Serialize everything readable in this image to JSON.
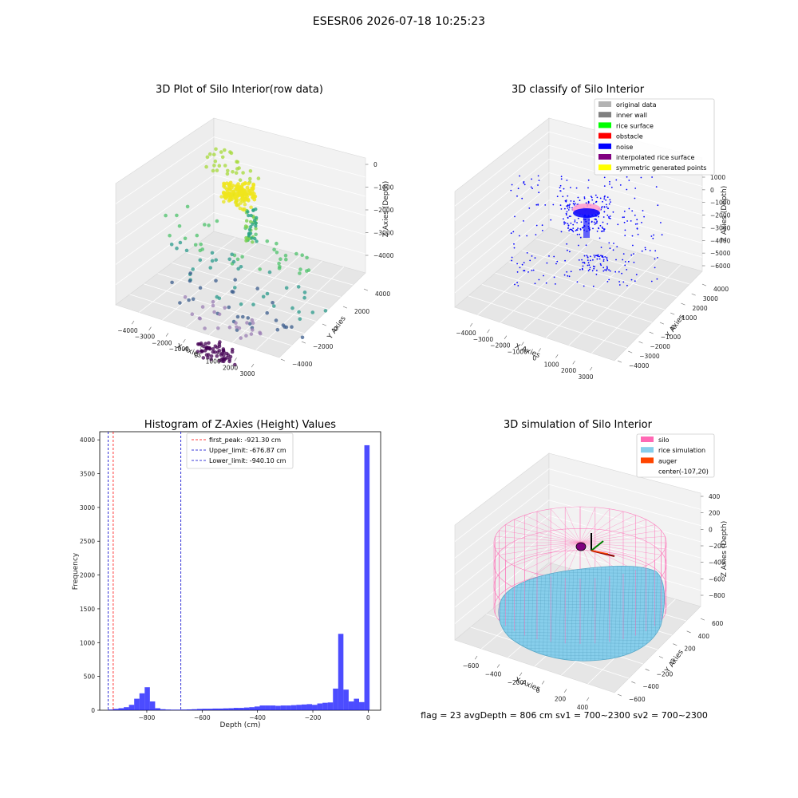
{
  "suptitle": "ESESR06 2026-07-18 10:25:23",
  "status_line": "flag = 23   avgDepth = 806 cm  sv1 = 700~2300  sv2 = 700~2300",
  "chart_data": [
    {
      "type": "scatter",
      "projection": "3d",
      "title": "3D Plot of Silo Interior(row data)",
      "xlabel": "X Axies",
      "ylabel": "Y Axies",
      "zlabel": "Z Axies (Depth)",
      "x_ticks": [
        "−4000",
        "−3000",
        "−2000",
        "−1000",
        "0",
        "1000",
        "2000",
        "3000"
      ],
      "y_ticks": [
        "−4000",
        "−2000",
        "0",
        "2000",
        "4000"
      ],
      "z_ticks": [
        "0",
        "−1000",
        "−2000",
        "−3000",
        "−4000"
      ],
      "xlim": [
        -4500,
        3500
      ],
      "ylim": [
        -4500,
        4500
      ],
      "zlim": [
        -4600,
        200
      ],
      "colormap": "viridis",
      "point_groups": [
        {
          "name": "",
          "color": "#e7e41a",
          "cx": -500,
          "cy": 800,
          "z": -900,
          "count": 60,
          "radius": 700
        },
        {
          "name": "",
          "color": "#a6d93a",
          "cx": -1500,
          "cy": 2500,
          "z": -600,
          "count": 30,
          "radius": 1500
        },
        {
          "name": "",
          "color": "#4cc16a",
          "cx": 0,
          "cy": 0,
          "z": -1800,
          "count": 40,
          "radius": 3600
        },
        {
          "name": "",
          "color": "#2a9a8b",
          "cx": 0,
          "cy": 0,
          "z": -2700,
          "count": 35,
          "radius": 3800
        },
        {
          "name": "",
          "color": "#3b5c8c",
          "cx": 0,
          "cy": 0,
          "z": -3400,
          "count": 30,
          "radius": 3300
        },
        {
          "name": "",
          "color": "#9b7fb4",
          "cx": -500,
          "cy": -500,
          "z": -3800,
          "count": 25,
          "radius": 1800
        },
        {
          "name": "",
          "color": "#440154",
          "cx": -300,
          "cy": -1800,
          "z": -4300,
          "count": 60,
          "radius": 900
        }
      ]
    },
    {
      "type": "scatter",
      "projection": "3d",
      "title": "3D classify of Silo Interior",
      "xlabel": "X Axies",
      "ylabel": "Y Axies",
      "zlabel": "Z Axies (Depth)",
      "x_ticks": [
        "−4000",
        "−3000",
        "−2000",
        "−1000",
        "0",
        "1000",
        "2000",
        "3000"
      ],
      "y_ticks": [
        "−4000",
        "−3000",
        "−2000",
        "−1000",
        "0",
        "1000",
        "2000",
        "3000",
        "4000"
      ],
      "z_ticks": [
        "1000",
        "0",
        "−1000",
        "−2000",
        "−3000",
        "−4000",
        "−5000",
        "−6000"
      ],
      "legend": [
        {
          "label": "original data",
          "color": "#b3b3b3"
        },
        {
          "label": "inner wall",
          "color": "#808080"
        },
        {
          "label": "rice surface",
          "color": "#00ff00"
        },
        {
          "label": "obstacle",
          "color": "#ff0000"
        },
        {
          "label": "noise",
          "color": "#0000ff"
        },
        {
          "label": "interpolated rice surface",
          "color": "#800080"
        },
        {
          "label": "symmetric generated points",
          "color": "#ffff00"
        }
      ],
      "legend_loc": "upper right",
      "noise_points": 420,
      "center_cluster": {
        "x": 0,
        "y": 0,
        "z": -2400,
        "color_outer": "#ff9ecf",
        "color_inner": "#0000ff"
      }
    },
    {
      "type": "bar",
      "title": "Histogram of Z-Axies (Height) Values",
      "xlabel": "Depth (cm)",
      "ylabel": "Frequency",
      "xlim": [
        -970,
        45
      ],
      "ylim": [
        0,
        4120
      ],
      "x_ticks": [
        -800,
        -600,
        -400,
        -200,
        0
      ],
      "y_ticks": [
        0,
        500,
        1000,
        1500,
        2000,
        2500,
        3000,
        3500,
        4000
      ],
      "bin_width": 18.9,
      "bin_starts": [
        -940,
        -921.1,
        -902.2,
        -883.3,
        -864.4,
        -845.5,
        -826.6,
        -807.7,
        -788.8,
        -769.9,
        -751,
        -732.1,
        -713.2,
        -694.3,
        -675.4,
        -656.5,
        -637.6,
        -618.7,
        -599.8,
        -580.9,
        -562,
        -543.1,
        -524.2,
        -505.3,
        -486.4,
        -467.5,
        -448.6,
        -429.7,
        -410.8,
        -391.9,
        -373,
        -354.1,
        -335.2,
        -316.3,
        -297.4,
        -278.5,
        -259.6,
        -240.7,
        -221.8,
        -202.9,
        -184,
        -165.1,
        -146.2,
        -127.3,
        -108.4,
        -89.5,
        -70.6,
        -51.7,
        -32.8,
        -13.9
      ],
      "values": [
        10,
        20,
        30,
        45,
        80,
        170,
        250,
        340,
        130,
        30,
        15,
        10,
        8,
        8,
        10,
        12,
        15,
        20,
        22,
        22,
        25,
        25,
        28,
        30,
        35,
        35,
        40,
        45,
        55,
        70,
        70,
        70,
        65,
        70,
        70,
        75,
        80,
        85,
        90,
        80,
        100,
        110,
        115,
        320,
        1130,
        305,
        130,
        170,
        120,
        3920
      ],
      "color": "#0000ff",
      "opacity": 0.7,
      "vlines": [
        {
          "label": "first_peak: -921.30 cm",
          "x": -921.3,
          "color": "#ff0000"
        },
        {
          "label": "Upper_limit: -676.87 cm",
          "x": -676.87,
          "color": "#0000cc"
        },
        {
          "label": "Lower_limit: -940.10 cm",
          "x": -940.1,
          "color": "#0000cc"
        }
      ],
      "legend_loc": "upper center"
    },
    {
      "type": "surface",
      "projection": "3d",
      "title": "3D simulation of Silo Interior",
      "xlabel": "X Axies",
      "ylabel": "Y Axies",
      "zlabel": "Z Axies (Depth)",
      "x_ticks": [
        "−600",
        "−400",
        "−200",
        "0",
        "200",
        "400"
      ],
      "y_ticks": [
        "−600",
        "−400",
        "−200",
        "0",
        "200",
        "400",
        "600"
      ],
      "z_ticks": [
        "400",
        "200",
        "0",
        "−200",
        "−400",
        "−600",
        "−800"
      ],
      "legend": [
        {
          "label": "silo",
          "color": "#ff69b4"
        },
        {
          "label": "rice simulation",
          "color": "#87ceeb"
        },
        {
          "label": "auger",
          "color": "#ff4500"
        },
        {
          "label": "center(-107,20)",
          "color": ""
        }
      ],
      "legend_loc": "upper right",
      "auger_center": [
        -107,
        20
      ]
    }
  ]
}
